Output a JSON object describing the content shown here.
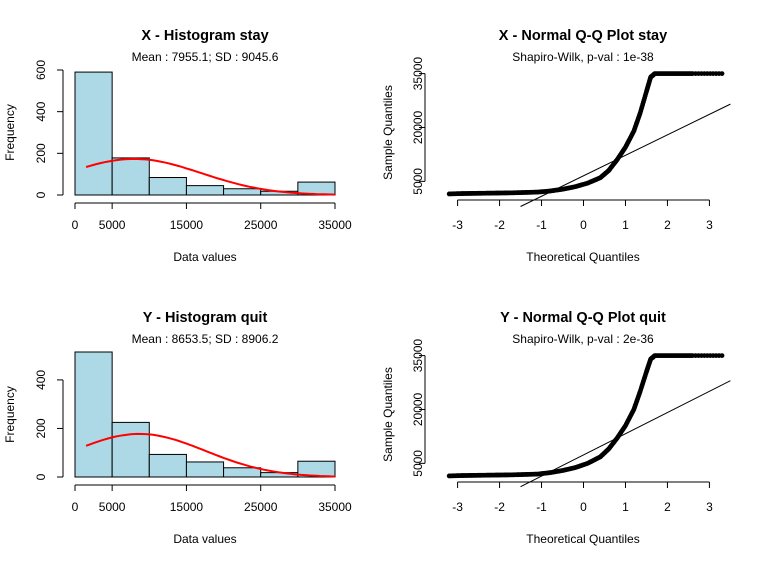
{
  "chart_data": [
    {
      "type": "bar",
      "title": "X - Histogram stay",
      "subtitle": "Mean : 7955.1; SD : 9045.6",
      "xlabel": "Data values",
      "ylabel": "Frequency",
      "bins": [
        [
          0,
          5000
        ],
        [
          5000,
          10000
        ],
        [
          10000,
          15000
        ],
        [
          15000,
          20000
        ],
        [
          20000,
          25000
        ],
        [
          25000,
          30000
        ],
        [
          30000,
          35000
        ]
      ],
      "values": [
        590,
        178,
        84,
        45,
        30,
        18,
        62
      ],
      "xlim": [
        0,
        35000
      ],
      "ylim": [
        0,
        600
      ],
      "xticks": [
        "0",
        "5000",
        "15000",
        "25000",
        "35000"
      ],
      "yticks": [
        "0",
        "200",
        "400",
        "600"
      ],
      "density_curve": {
        "color": "#ff0000",
        "mean": 7955.1,
        "sd": 9045.6
      },
      "colors": {
        "bar_fill": "#add8e6"
      }
    },
    {
      "type": "scatter",
      "title": "X - Normal Q-Q Plot stay",
      "subtitle": "Shapiro-Wilk, p-val : 1e-38",
      "xlabel": "Theoretical Quantiles",
      "ylabel": "Sample Quantiles",
      "xlim": [
        -3.3,
        3.3
      ],
      "ylim": [
        1200,
        36000
      ],
      "xticks": [
        "-3",
        "-2",
        "-1",
        "0",
        "1",
        "2",
        "3"
      ],
      "yticks": [
        "5000",
        "20000",
        "35000"
      ],
      "points": [
        [
          -3.2,
          1500
        ],
        [
          -2.9,
          1600
        ],
        [
          -2.6,
          1650
        ],
        [
          -2.3,
          1700
        ],
        [
          -2.0,
          1750
        ],
        [
          -1.7,
          1800
        ],
        [
          -1.4,
          1900
        ],
        [
          -1.1,
          2000
        ],
        [
          -0.8,
          2300
        ],
        [
          -0.5,
          2800
        ],
        [
          -0.2,
          3500
        ],
        [
          0.1,
          4500
        ],
        [
          0.4,
          6000
        ],
        [
          0.6,
          8000
        ],
        [
          0.8,
          11000
        ],
        [
          1.0,
          14500
        ],
        [
          1.2,
          19000
        ],
        [
          1.35,
          24000
        ],
        [
          1.5,
          30000
        ],
        [
          1.6,
          34000
        ],
        [
          1.7,
          35000
        ],
        [
          2.0,
          35000
        ],
        [
          2.3,
          35000
        ],
        [
          2.6,
          35000
        ],
        [
          3.3,
          35000
        ]
      ],
      "reference_line": [
        [
          -1.5,
          -2000
        ],
        [
          3.5,
          26500
        ]
      ]
    },
    {
      "type": "bar",
      "title": "Y - Histogram quit",
      "subtitle": "Mean : 8653.5; SD : 8906.2",
      "xlabel": "Data values",
      "ylabel": "Frequency",
      "bins": [
        [
          0,
          5000
        ],
        [
          5000,
          10000
        ],
        [
          10000,
          15000
        ],
        [
          15000,
          20000
        ],
        [
          20000,
          25000
        ],
        [
          25000,
          30000
        ],
        [
          30000,
          35000
        ]
      ],
      "values": [
        515,
        225,
        93,
        62,
        38,
        18,
        65
      ],
      "xlim": [
        0,
        35000
      ],
      "ylim": [
        0,
        515
      ],
      "xticks": [
        "0",
        "5000",
        "15000",
        "25000",
        "35000"
      ],
      "yticks": [
        "0",
        "200",
        "400"
      ],
      "density_curve": {
        "color": "#ff0000",
        "mean": 8653.5,
        "sd": 8906.2
      },
      "colors": {
        "bar_fill": "#add8e6"
      }
    },
    {
      "type": "scatter",
      "title": "Y - Normal Q-Q Plot quit",
      "subtitle": "Shapiro-Wilk, p-val : 2e-36",
      "xlabel": "Theoretical Quantiles",
      "ylabel": "Sample Quantiles",
      "xlim": [
        -3.3,
        3.3
      ],
      "ylim": [
        1200,
        36000
      ],
      "xticks": [
        "-3",
        "-2",
        "-1",
        "0",
        "1",
        "2",
        "3"
      ],
      "yticks": [
        "5000",
        "20000",
        "35000"
      ],
      "points": [
        [
          -3.2,
          1500
        ],
        [
          -2.9,
          1600
        ],
        [
          -2.6,
          1650
        ],
        [
          -2.3,
          1700
        ],
        [
          -2.0,
          1750
        ],
        [
          -1.7,
          1800
        ],
        [
          -1.4,
          1900
        ],
        [
          -1.1,
          2000
        ],
        [
          -0.8,
          2400
        ],
        [
          -0.5,
          3000
        ],
        [
          -0.2,
          3800
        ],
        [
          0.1,
          5000
        ],
        [
          0.4,
          6800
        ],
        [
          0.6,
          9000
        ],
        [
          0.8,
          12000
        ],
        [
          1.0,
          15500
        ],
        [
          1.2,
          20000
        ],
        [
          1.35,
          25000
        ],
        [
          1.5,
          30500
        ],
        [
          1.6,
          34000
        ],
        [
          1.7,
          35000
        ],
        [
          2.0,
          35000
        ],
        [
          2.3,
          35000
        ],
        [
          2.6,
          35000
        ],
        [
          3.3,
          35000
        ]
      ],
      "reference_line": [
        [
          -1.5,
          -1500
        ],
        [
          3.5,
          28000
        ]
      ]
    }
  ]
}
